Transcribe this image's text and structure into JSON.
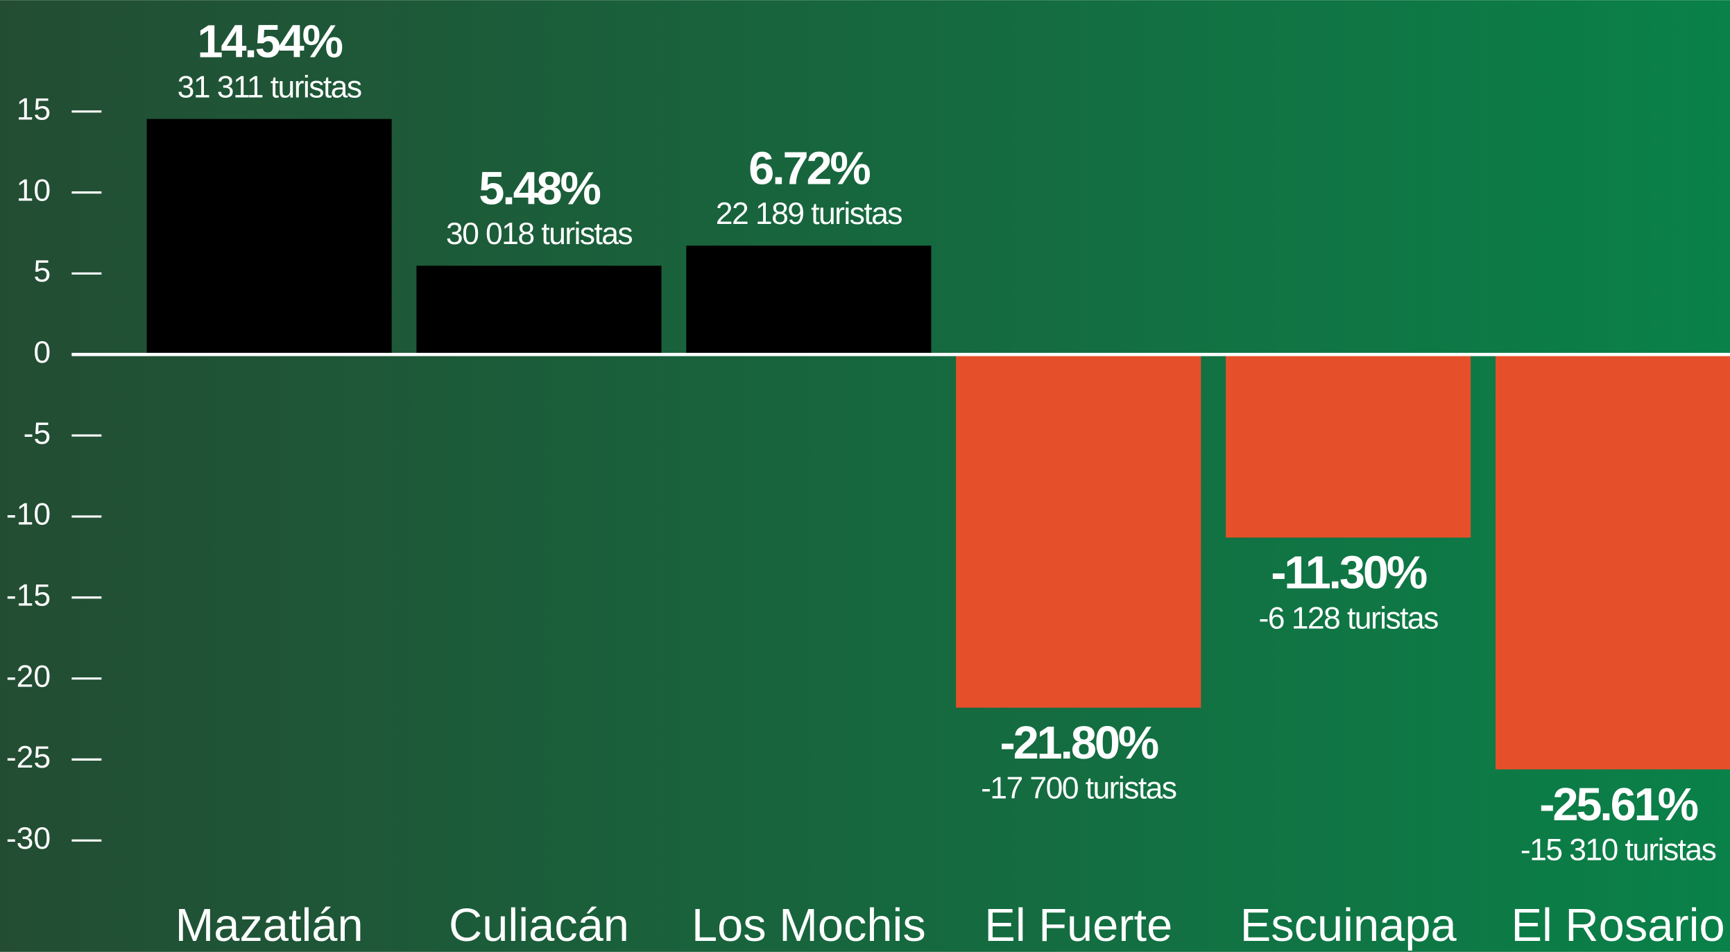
{
  "chart_data": {
    "type": "bar",
    "categories": [
      "Mazatlán",
      "Culiacán",
      "Los Mochis",
      "El Fuerte",
      "Escuinapa",
      "El Rosario"
    ],
    "values": [
      14.54,
      5.48,
      6.72,
      -21.8,
      -11.3,
      -25.61
    ],
    "value_labels": [
      "14.54%",
      "5.48%",
      "6.72%",
      "-21.80%",
      "-11.30%",
      "-25.61%"
    ],
    "annotations": [
      "31 311 turistas",
      "30 018 turistas",
      "22 189 turistas",
      "-17 700 turistas",
      "-6 128 turistas",
      "-15 310 turistas"
    ],
    "colors": [
      "#000000",
      "#000000",
      "#000000",
      "#e5502a",
      "#e5502a",
      "#e5502a"
    ],
    "ylim": [
      -30,
      15
    ],
    "yticks": [
      15,
      10,
      5,
      0,
      -5,
      -10,
      -15,
      -20,
      -25,
      -30
    ]
  }
}
